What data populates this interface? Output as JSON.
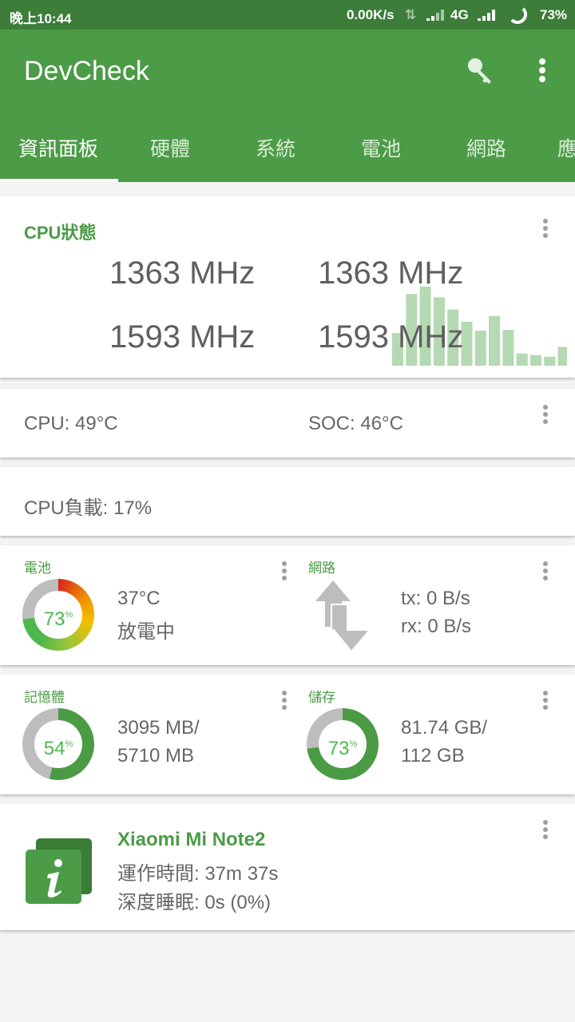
{
  "status_bar": {
    "time": "晚上10:44",
    "net_speed": "0.00K/s",
    "network_type": "4G",
    "battery": "73%"
  },
  "app_bar": {
    "title": "DevCheck",
    "key_icon": "key-icon",
    "menu_icon": "more-vert-icon"
  },
  "tabs": [
    {
      "label": "資訊面板",
      "active": true
    },
    {
      "label": "硬體"
    },
    {
      "label": "系統"
    },
    {
      "label": "電池"
    },
    {
      "label": "網路"
    },
    {
      "label": "應"
    }
  ],
  "cpu_status": {
    "title": "CPU狀態",
    "freqs": [
      "1363 MHz",
      "1363 MHz",
      "1593 MHz",
      "1593 MHz"
    ],
    "load_history": [
      40,
      88,
      97,
      84,
      69,
      54,
      43,
      61,
      44,
      15,
      13,
      11,
      23
    ]
  },
  "temps": {
    "cpu": "CPU: 49°C",
    "soc": "SOC: 46°C"
  },
  "cpu_load": "CPU負載: 17%",
  "battery": {
    "title": "電池",
    "percent": 73,
    "percent_label": "73",
    "unit": "%",
    "temp": "37°C",
    "state": "放電中"
  },
  "network": {
    "title": "網路",
    "tx": "tx: 0 B/s",
    "rx": "rx: 0 B/s"
  },
  "memory": {
    "title": "記憶體",
    "percent": 54,
    "percent_label": "54",
    "unit": "%",
    "used": "3095 MB/",
    "total": "5710 MB"
  },
  "storage": {
    "title": "儲存",
    "percent": 73,
    "percent_label": "73",
    "unit": "%",
    "used": "81.74 GB/",
    "total": "112 GB"
  },
  "device": {
    "name": "Xiaomi Mi Note2",
    "uptime": "運作時間: 37m 37s",
    "deep_sleep": "深度睡眠: 0s (0%)"
  },
  "colors": {
    "primary": "#4c9b47",
    "primary_dark": "#3b7d39",
    "bar": "#b5d9b2",
    "ring_gray": "#bdbdbd"
  }
}
